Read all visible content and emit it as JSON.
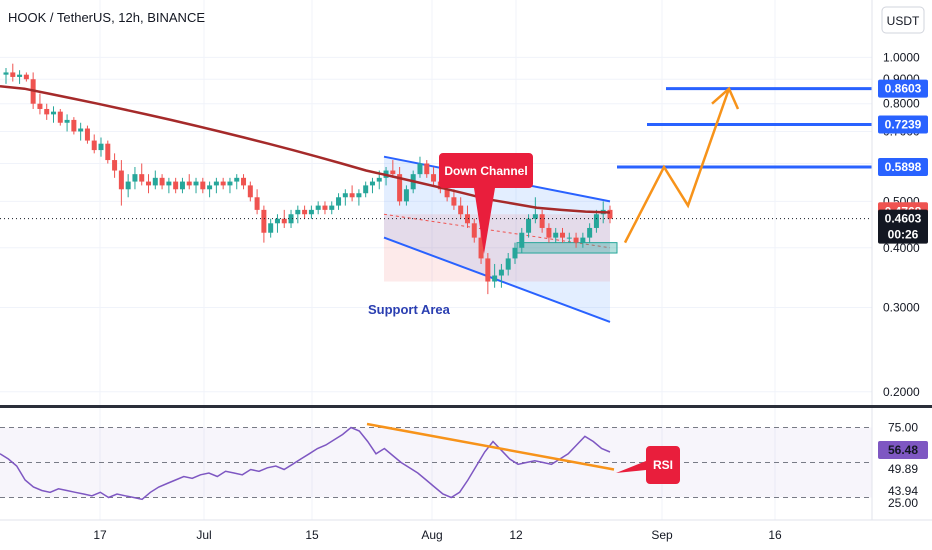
{
  "header": {
    "title": "HOOK / TetherUS, 12h, BINANCE"
  },
  "currency_button": "USDT",
  "colors": {
    "up": "#26a69a",
    "down": "#ef5350",
    "ma": "#a52a2a",
    "channel": "#2962ff",
    "arrow": "#f7931a",
    "rsi_line": "#7e57c2",
    "rsi_trend": "#f7931a",
    "callout": "#e91e3c"
  },
  "chart_data": [
    {
      "type": "candlestick",
      "title": "HOOK / TetherUS, 12h, BINANCE",
      "x_ticks": [
        "17",
        "Jul",
        "15",
        "Aug",
        "12",
        "Sep",
        "16"
      ],
      "y_ticks": [
        "1.0000",
        "0.9000",
        "0.8000",
        "0.7000",
        "0.6000",
        "0.5000",
        "0.4000",
        "0.3000",
        "0.2000"
      ],
      "ylim": [
        0.2,
        1.0
      ],
      "y_scale": "log",
      "grid": true,
      "price_labels": [
        {
          "value": "0.8603",
          "style": "blue"
        },
        {
          "value": "0.7239",
          "style": "blue"
        },
        {
          "value": "0.5898",
          "style": "blue"
        },
        {
          "value": "0.4768",
          "style": "red"
        },
        {
          "value": "0.4603",
          "style": "dark"
        }
      ],
      "countdown": "00:26",
      "annotations": [
        "Down Channel",
        "Support Area"
      ],
      "target_levels": [
        0.8603,
        0.7239,
        0.5898
      ],
      "ohlc": [
        [
          0.92,
          0.95,
          0.88,
          0.93
        ],
        [
          0.93,
          0.97,
          0.89,
          0.91
        ],
        [
          0.91,
          0.94,
          0.88,
          0.92
        ],
        [
          0.92,
          0.93,
          0.89,
          0.9
        ],
        [
          0.9,
          0.93,
          0.78,
          0.8
        ],
        [
          0.8,
          0.84,
          0.76,
          0.78
        ],
        [
          0.78,
          0.8,
          0.74,
          0.76
        ],
        [
          0.76,
          0.79,
          0.73,
          0.77
        ],
        [
          0.77,
          0.78,
          0.72,
          0.73
        ],
        [
          0.73,
          0.76,
          0.7,
          0.74
        ],
        [
          0.74,
          0.75,
          0.69,
          0.7
        ],
        [
          0.7,
          0.73,
          0.67,
          0.71
        ],
        [
          0.71,
          0.72,
          0.66,
          0.67
        ],
        [
          0.67,
          0.69,
          0.63,
          0.64
        ],
        [
          0.64,
          0.68,
          0.62,
          0.66
        ],
        [
          0.66,
          0.67,
          0.6,
          0.61
        ],
        [
          0.61,
          0.63,
          0.56,
          0.58
        ],
        [
          0.58,
          0.61,
          0.49,
          0.53
        ],
        [
          0.53,
          0.57,
          0.51,
          0.55
        ],
        [
          0.55,
          0.59,
          0.53,
          0.57
        ],
        [
          0.57,
          0.6,
          0.54,
          0.55
        ],
        [
          0.55,
          0.57,
          0.52,
          0.54
        ],
        [
          0.54,
          0.58,
          0.53,
          0.56
        ],
        [
          0.56,
          0.57,
          0.53,
          0.54
        ],
        [
          0.54,
          0.56,
          0.52,
          0.55
        ],
        [
          0.55,
          0.56,
          0.52,
          0.53
        ],
        [
          0.53,
          0.56,
          0.52,
          0.55
        ],
        [
          0.55,
          0.57,
          0.53,
          0.54
        ],
        [
          0.54,
          0.56,
          0.52,
          0.55
        ],
        [
          0.55,
          0.56,
          0.52,
          0.53
        ],
        [
          0.53,
          0.55,
          0.51,
          0.54
        ],
        [
          0.54,
          0.56,
          0.52,
          0.55
        ],
        [
          0.55,
          0.56,
          0.53,
          0.54
        ],
        [
          0.54,
          0.56,
          0.52,
          0.55
        ],
        [
          0.55,
          0.57,
          0.53,
          0.56
        ],
        [
          0.56,
          0.57,
          0.53,
          0.54
        ],
        [
          0.54,
          0.55,
          0.5,
          0.51
        ],
        [
          0.51,
          0.53,
          0.47,
          0.48
        ],
        [
          0.48,
          0.49,
          0.41,
          0.43
        ],
        [
          0.43,
          0.46,
          0.42,
          0.45
        ],
        [
          0.45,
          0.47,
          0.43,
          0.46
        ],
        [
          0.46,
          0.48,
          0.44,
          0.45
        ],
        [
          0.45,
          0.48,
          0.44,
          0.47
        ],
        [
          0.47,
          0.49,
          0.45,
          0.48
        ],
        [
          0.48,
          0.49,
          0.46,
          0.47
        ],
        [
          0.47,
          0.49,
          0.46,
          0.48
        ],
        [
          0.48,
          0.5,
          0.47,
          0.49
        ],
        [
          0.49,
          0.5,
          0.47,
          0.48
        ],
        [
          0.48,
          0.5,
          0.47,
          0.49
        ],
        [
          0.49,
          0.52,
          0.48,
          0.51
        ],
        [
          0.51,
          0.53,
          0.49,
          0.52
        ],
        [
          0.52,
          0.54,
          0.5,
          0.51
        ],
        [
          0.51,
          0.53,
          0.49,
          0.52
        ],
        [
          0.52,
          0.55,
          0.51,
          0.54
        ],
        [
          0.54,
          0.56,
          0.52,
          0.55
        ],
        [
          0.55,
          0.58,
          0.53,
          0.56
        ],
        [
          0.56,
          0.59,
          0.54,
          0.58
        ],
        [
          0.58,
          0.61,
          0.56,
          0.57
        ],
        [
          0.57,
          0.59,
          0.49,
          0.5
        ],
        [
          0.5,
          0.54,
          0.49,
          0.53
        ],
        [
          0.53,
          0.58,
          0.52,
          0.57
        ],
        [
          0.57,
          0.62,
          0.56,
          0.6
        ],
        [
          0.6,
          0.61,
          0.56,
          0.57
        ],
        [
          0.57,
          0.59,
          0.54,
          0.55
        ],
        [
          0.55,
          0.57,
          0.52,
          0.53
        ],
        [
          0.53,
          0.55,
          0.5,
          0.51
        ],
        [
          0.51,
          0.53,
          0.48,
          0.49
        ],
        [
          0.49,
          0.51,
          0.46,
          0.47
        ],
        [
          0.47,
          0.49,
          0.44,
          0.45
        ],
        [
          0.45,
          0.46,
          0.41,
          0.42
        ],
        [
          0.42,
          0.44,
          0.37,
          0.38
        ],
        [
          0.38,
          0.39,
          0.32,
          0.34
        ],
        [
          0.34,
          0.37,
          0.33,
          0.35
        ],
        [
          0.35,
          0.37,
          0.33,
          0.36
        ],
        [
          0.36,
          0.39,
          0.35,
          0.38
        ],
        [
          0.38,
          0.41,
          0.37,
          0.4
        ],
        [
          0.4,
          0.44,
          0.39,
          0.43
        ],
        [
          0.43,
          0.47,
          0.42,
          0.46
        ],
        [
          0.46,
          0.51,
          0.45,
          0.47
        ],
        [
          0.47,
          0.48,
          0.43,
          0.44
        ],
        [
          0.44,
          0.45,
          0.41,
          0.42
        ],
        [
          0.42,
          0.44,
          0.41,
          0.43
        ],
        [
          0.43,
          0.44,
          0.41,
          0.42
        ],
        [
          0.42,
          0.43,
          0.41,
          0.42
        ],
        [
          0.42,
          0.43,
          0.4,
          0.41
        ],
        [
          0.41,
          0.43,
          0.4,
          0.42
        ],
        [
          0.42,
          0.45,
          0.41,
          0.44
        ],
        [
          0.44,
          0.48,
          0.43,
          0.47
        ],
        [
          0.47,
          0.5,
          0.45,
          0.48
        ],
        [
          0.48,
          0.49,
          0.45,
          0.46
        ]
      ],
      "ma": [
        0.87,
        0.86,
        0.84,
        0.82,
        0.8,
        0.78,
        0.76,
        0.74,
        0.72,
        0.7,
        0.68,
        0.66,
        0.64,
        0.62,
        0.6,
        0.58,
        0.565,
        0.55,
        0.535,
        0.52,
        0.505,
        0.495,
        0.485,
        0.48,
        0.476,
        0.474
      ],
      "channel_upper": [
        0.62,
        0.5
      ],
      "channel_lower": [
        0.42,
        0.28
      ],
      "support_zone": [
        0.39,
        0.41
      ],
      "projection": [
        0.41,
        0.59,
        0.49,
        0.86,
        0.8
      ]
    },
    {
      "type": "line",
      "title": "RSI",
      "y_ticks": [
        "75.00",
        "25.00"
      ],
      "price_labels": [
        "56.48",
        "49.89",
        "43.94"
      ],
      "ylim": [
        20,
        80
      ],
      "levels": [
        70,
        50,
        30
      ],
      "values": [
        55,
        52,
        48,
        40,
        36,
        34,
        33,
        35,
        34,
        33,
        32,
        31,
        33,
        30,
        32,
        31,
        30,
        29,
        33,
        36,
        38,
        40,
        42,
        41,
        43,
        44,
        42,
        45,
        44,
        43,
        46,
        45,
        47,
        48,
        46,
        49,
        52,
        55,
        58,
        60,
        63,
        66,
        70,
        68,
        62,
        55,
        58,
        54,
        50,
        47,
        44,
        40,
        36,
        32,
        30,
        33,
        40,
        48,
        56,
        62,
        57,
        52,
        49,
        50,
        51,
        50,
        49,
        52,
        55,
        60,
        65,
        62,
        58,
        56
      ],
      "trendline": [
        72,
        46
      ]
    }
  ]
}
